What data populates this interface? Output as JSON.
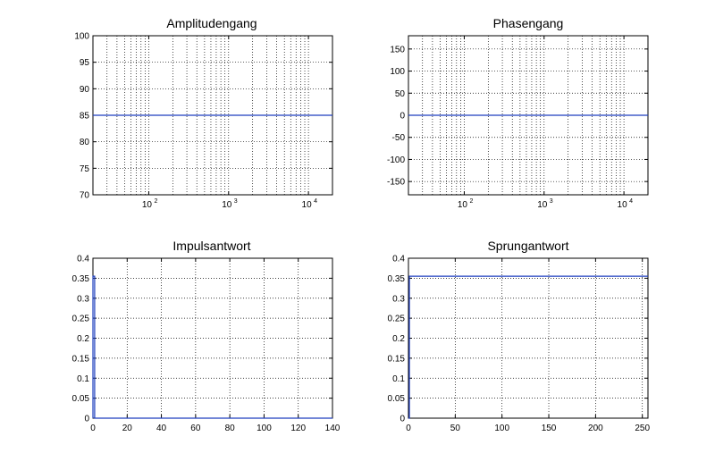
{
  "colors": {
    "series": "#1f3fbf",
    "axes": "#000000",
    "background": "#ffffff"
  },
  "chart_data": [
    {
      "type": "line",
      "title": "Amplitudengang",
      "xscale": "log",
      "xlim": [
        20,
        20000
      ],
      "ylim": [
        70,
        100
      ],
      "grid": true,
      "xticks": [
        {
          "value": 100,
          "base": "10",
          "exp": "2"
        },
        {
          "value": 1000,
          "base": "10",
          "exp": "3"
        },
        {
          "value": 10000,
          "base": "10",
          "exp": "4"
        }
      ],
      "yticks": [
        {
          "value": 70,
          "label": "70"
        },
        {
          "value": 75,
          "label": "75"
        },
        {
          "value": 80,
          "label": "80"
        },
        {
          "value": 85,
          "label": "85"
        },
        {
          "value": 90,
          "label": "90"
        },
        {
          "value": 95,
          "label": "95"
        },
        {
          "value": 100,
          "label": "100"
        }
      ],
      "series": [
        {
          "x": [
            20,
            20000
          ],
          "y": [
            85,
            85
          ]
        }
      ]
    },
    {
      "type": "line",
      "title": "Phasengang",
      "xscale": "log",
      "xlim": [
        20,
        20000
      ],
      "ylim": [
        -180,
        180
      ],
      "grid": true,
      "xticks": [
        {
          "value": 100,
          "base": "10",
          "exp": "2"
        },
        {
          "value": 1000,
          "base": "10",
          "exp": "3"
        },
        {
          "value": 10000,
          "base": "10",
          "exp": "4"
        }
      ],
      "yticks": [
        {
          "value": -150,
          "label": "-150"
        },
        {
          "value": -100,
          "label": "-100"
        },
        {
          "value": -50,
          "label": "-50"
        },
        {
          "value": 0,
          "label": "0"
        },
        {
          "value": 50,
          "label": "50"
        },
        {
          "value": 100,
          "label": "100"
        },
        {
          "value": 150,
          "label": "150"
        }
      ],
      "series": [
        {
          "x": [
            20,
            20000
          ],
          "y": [
            0,
            0
          ]
        }
      ]
    },
    {
      "type": "line",
      "title": "Impulsantwort",
      "xscale": "linear",
      "xlim": [
        0,
        140
      ],
      "ylim": [
        0,
        0.4
      ],
      "grid": true,
      "xticks": [
        {
          "value": 0,
          "label": "0"
        },
        {
          "value": 20,
          "label": "20"
        },
        {
          "value": 40,
          "label": "40"
        },
        {
          "value": 60,
          "label": "60"
        },
        {
          "value": 80,
          "label": "80"
        },
        {
          "value": 100,
          "label": "100"
        },
        {
          "value": 120,
          "label": "120"
        },
        {
          "value": 140,
          "label": "140"
        }
      ],
      "yticks": [
        {
          "value": 0,
          "label": "0"
        },
        {
          "value": 0.05,
          "label": "0.05"
        },
        {
          "value": 0.1,
          "label": "0.1"
        },
        {
          "value": 0.15,
          "label": "0.15"
        },
        {
          "value": 0.2,
          "label": "0.2"
        },
        {
          "value": 0.25,
          "label": "0.25"
        },
        {
          "value": 0.3,
          "label": "0.3"
        },
        {
          "value": 0.35,
          "label": "0.35"
        },
        {
          "value": 0.4,
          "label": "0.4"
        }
      ],
      "series": [
        {
          "x": [
            0,
            0,
            1,
            1,
            2,
            140
          ],
          "y": [
            0,
            0.355,
            0.355,
            0,
            0,
            0
          ]
        }
      ]
    },
    {
      "type": "line",
      "title": "Sprungantwort",
      "xscale": "linear",
      "xlim": [
        0,
        256
      ],
      "ylim": [
        0,
        0.4
      ],
      "grid": true,
      "xticks": [
        {
          "value": 0,
          "label": "0"
        },
        {
          "value": 50,
          "label": "50"
        },
        {
          "value": 100,
          "label": "100"
        },
        {
          "value": 150,
          "label": "150"
        },
        {
          "value": 200,
          "label": "200"
        },
        {
          "value": 250,
          "label": "250"
        }
      ],
      "yticks": [
        {
          "value": 0,
          "label": "0"
        },
        {
          "value": 0.05,
          "label": "0.05"
        },
        {
          "value": 0.1,
          "label": "0.1"
        },
        {
          "value": 0.15,
          "label": "0.15"
        },
        {
          "value": 0.2,
          "label": "0.2"
        },
        {
          "value": 0.25,
          "label": "0.25"
        },
        {
          "value": 0.3,
          "label": "0.3"
        },
        {
          "value": 0.35,
          "label": "0.35"
        },
        {
          "value": 0.4,
          "label": "0.4"
        }
      ],
      "series": [
        {
          "x": [
            0,
            1,
            1,
            2,
            256
          ],
          "y": [
            0,
            0,
            0.355,
            0.355,
            0.355
          ]
        }
      ]
    }
  ]
}
